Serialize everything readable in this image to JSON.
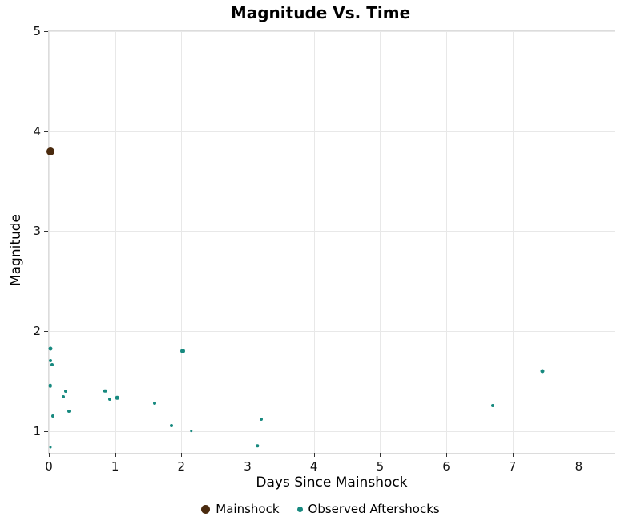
{
  "chart_data": {
    "type": "scatter",
    "title": "Magnitude Vs. Time",
    "xlabel": "Days Since Mainshock",
    "ylabel": "Magnitude",
    "xlim": [
      0,
      8.54
    ],
    "ylim": [
      0.78,
      5.0
    ],
    "x_ticks": [
      0,
      1,
      2,
      3,
      4,
      5,
      6,
      7,
      8
    ],
    "y_ticks": [
      1,
      2,
      3,
      4,
      5
    ],
    "grid": true,
    "legend_position": "bottom",
    "series": [
      {
        "name": "Mainshock",
        "color": "#4a2a0e",
        "points": [
          [
            0.02,
            3.8,
            10
          ]
        ]
      },
      {
        "name": "Observed Aftershocks",
        "color": "#17897f",
        "points": [
          [
            0.02,
            1.82,
            5
          ],
          [
            0.02,
            1.7,
            4
          ],
          [
            0.05,
            1.66,
            4
          ],
          [
            0.02,
            1.45,
            4.5
          ],
          [
            0.06,
            1.15,
            4
          ],
          [
            0.03,
            0.84,
            3
          ],
          [
            0.25,
            1.4,
            4
          ],
          [
            0.22,
            1.34,
            4
          ],
          [
            0.3,
            1.2,
            4
          ],
          [
            0.85,
            1.4,
            4.5
          ],
          [
            0.92,
            1.32,
            4
          ],
          [
            1.03,
            1.33,
            4.5
          ],
          [
            1.6,
            1.28,
            4
          ],
          [
            1.85,
            1.05,
            4
          ],
          [
            2.02,
            1.8,
            6
          ],
          [
            2.15,
            1.0,
            3.5
          ],
          [
            3.2,
            1.12,
            4
          ],
          [
            3.15,
            0.85,
            3.5
          ],
          [
            6.7,
            1.25,
            4
          ],
          [
            7.45,
            1.6,
            5
          ]
        ]
      }
    ]
  }
}
